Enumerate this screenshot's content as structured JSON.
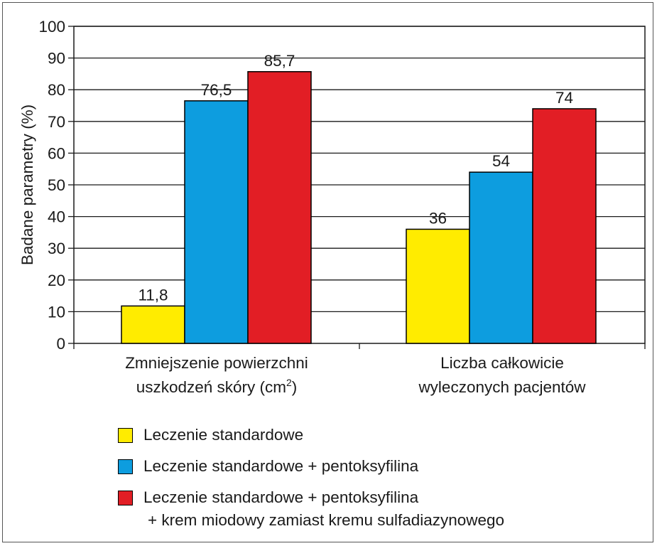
{
  "chart_data": {
    "type": "bar",
    "ylabel": "Badane parametry (%)",
    "ylim": [
      0,
      100
    ],
    "yticks": [
      "0",
      "10",
      "20",
      "30",
      "40",
      "50",
      "60",
      "70",
      "80",
      "90",
      "100"
    ],
    "grid": true,
    "legend_position": "bottom",
    "categories": [
      {
        "line1": "Zmniejszenie powierzchni",
        "line2": "uszkodzeń skóry (cm",
        "line2_sup": "2",
        "line2_end": ")"
      },
      {
        "line1": "Liczba całkowicie",
        "line2": "wyleczonych pacjentów",
        "line2_sup": "",
        "line2_end": ""
      }
    ],
    "series": [
      {
        "name": "Leczenie standardowe",
        "color": "#ffec00",
        "values": [
          11.8,
          36
        ],
        "labels": [
          "11,8",
          "36"
        ]
      },
      {
        "name": "Leczenie standardowe + pentoksyfilina",
        "color": "#0d9ddf",
        "values": [
          76.5,
          54
        ],
        "labels": [
          "76,5",
          "54"
        ]
      },
      {
        "name": "Leczenie standardowe + pentoksyfilina",
        "name_line2": "+ krem miodowy zamiast kremu sulfadiazynowego",
        "color": "#e21e25",
        "values": [
          85.7,
          74
        ],
        "labels": [
          "85,7",
          "74"
        ]
      }
    ]
  }
}
